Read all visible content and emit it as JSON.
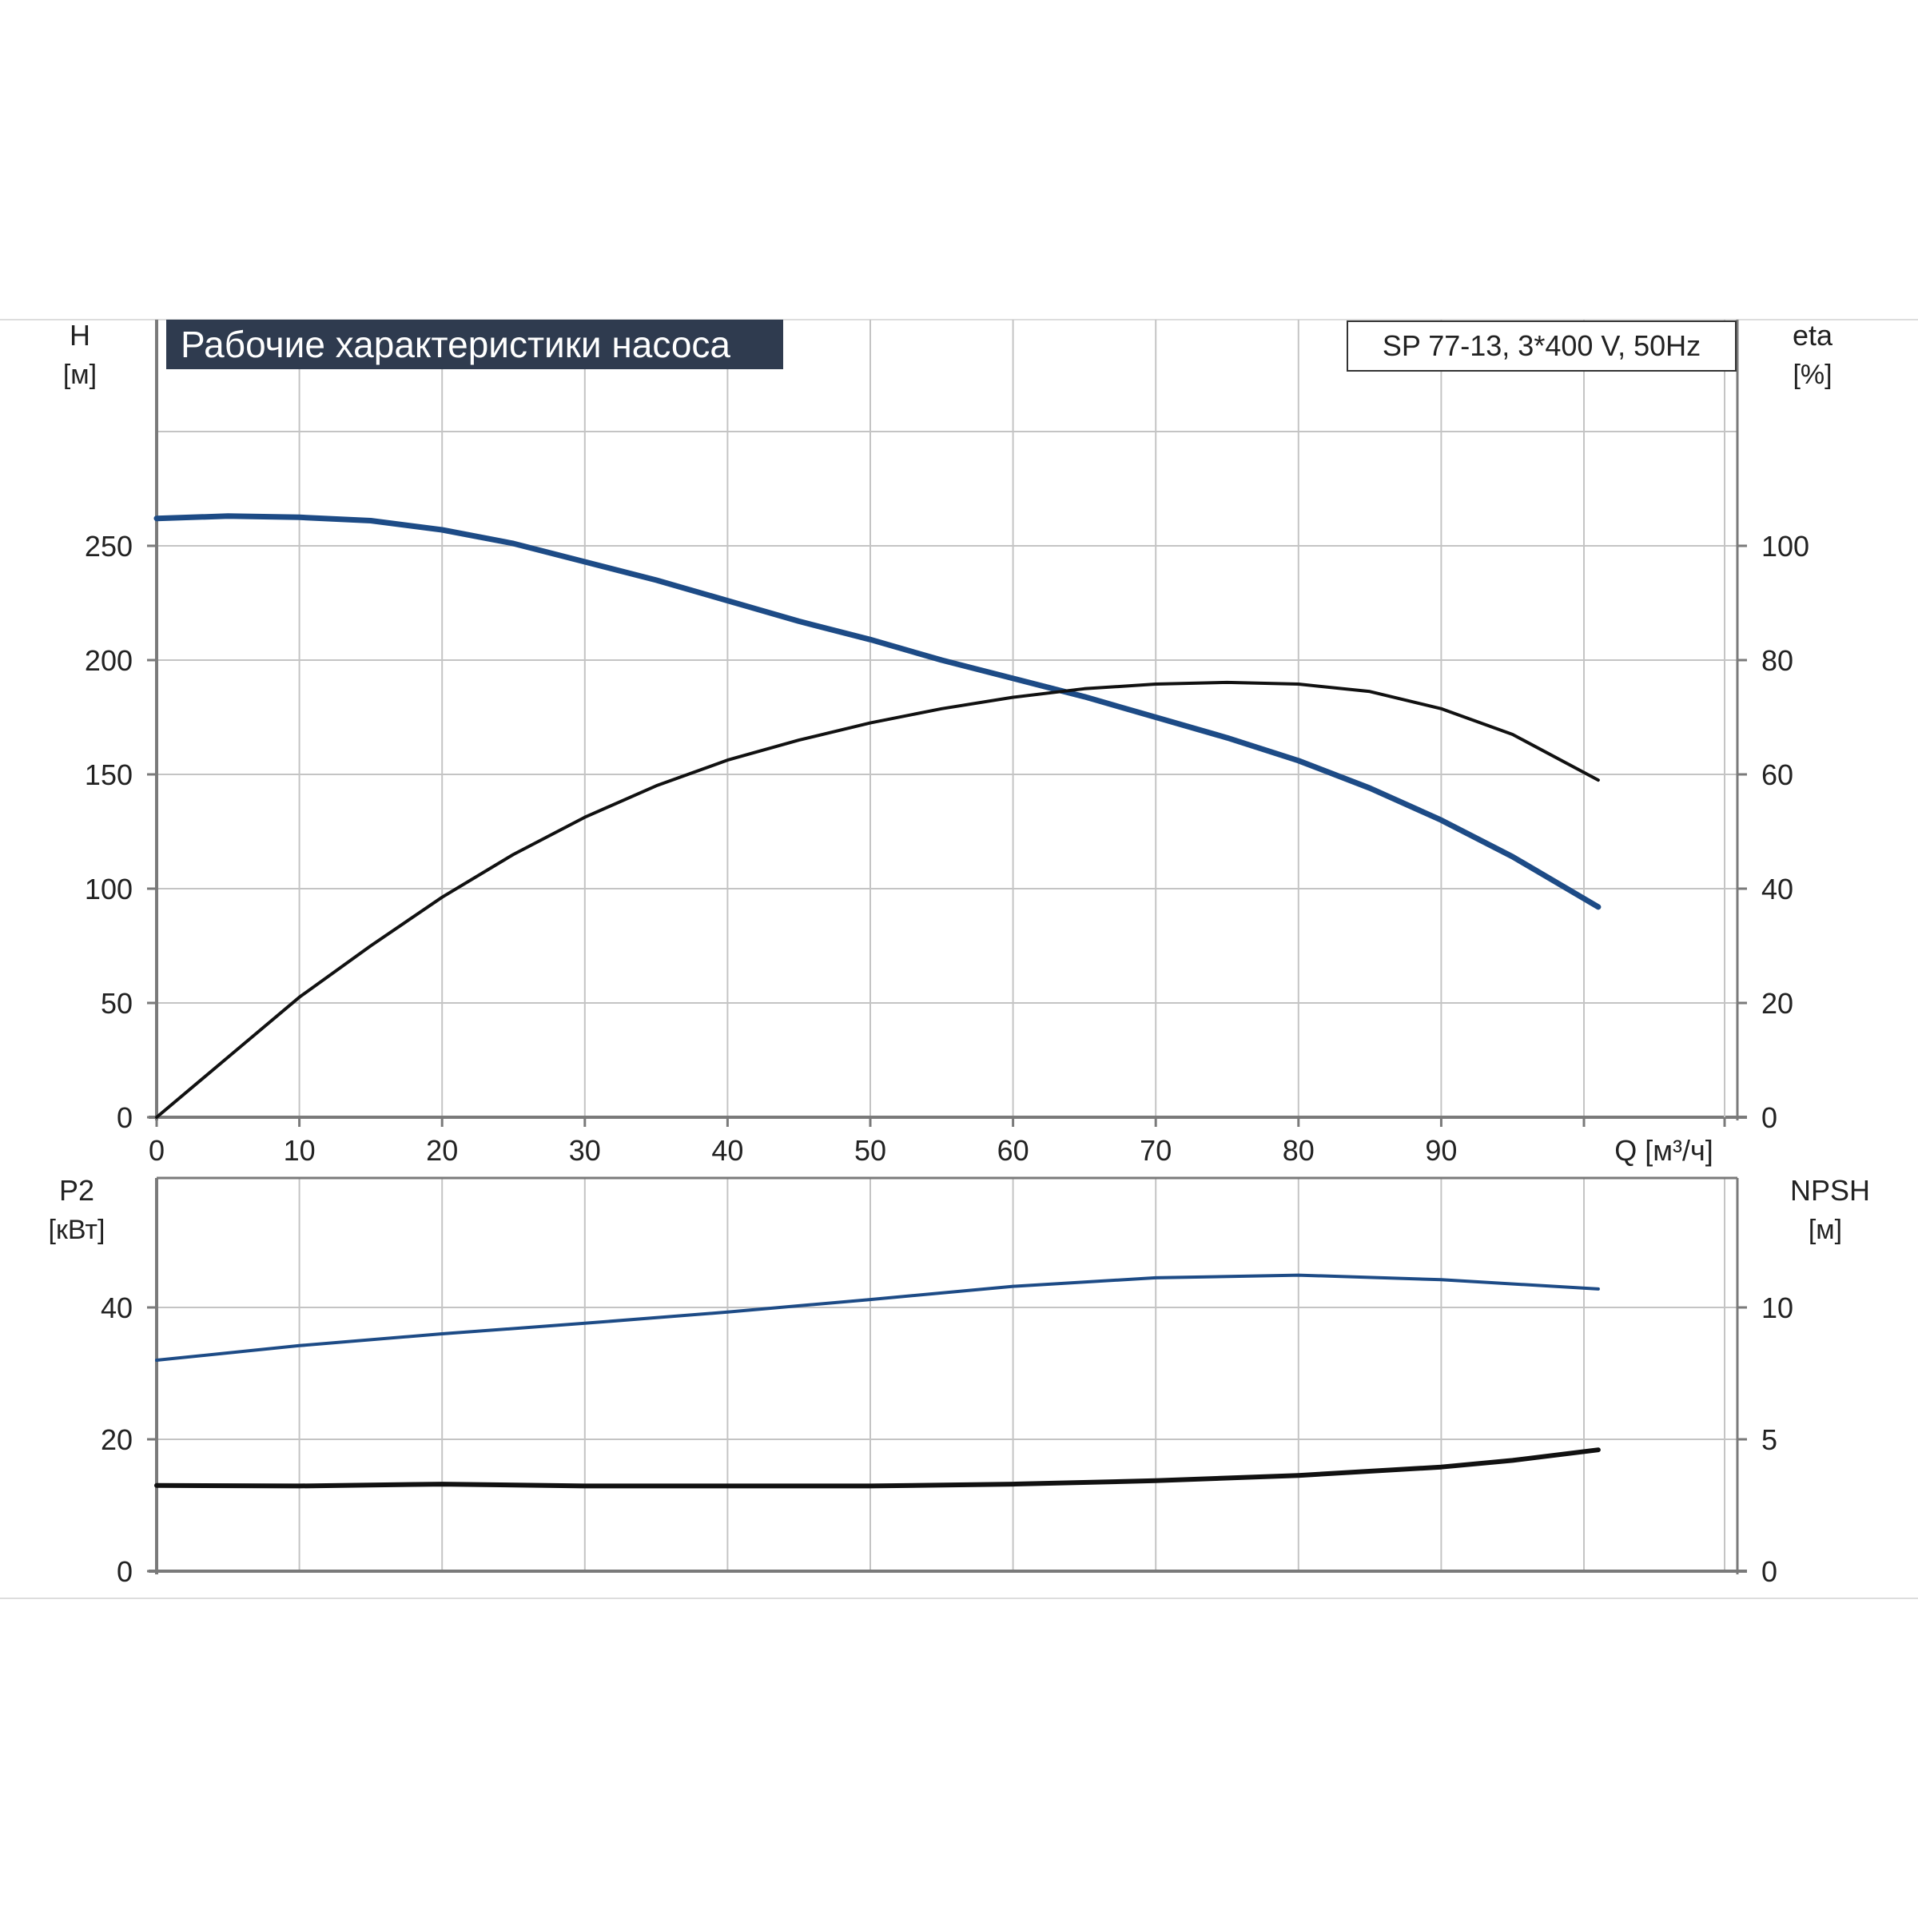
{
  "colors": {
    "head_curve": "#1d4b86",
    "efficiency_curve": "#111111",
    "power_curve": "#1d4b86",
    "npsh_curve": "#111111",
    "grid": "#c4c4c4",
    "axis": "#7a7a7a",
    "title_bg": "#2f3b4f",
    "title_text": "#ffffff"
  },
  "chart_data": [
    {
      "type": "line",
      "title": "Рабочие характеристики насоса",
      "model_label": "SP 77-13, 3*400 V, 50Hz",
      "ylabel_left": [
        "H",
        "[м]"
      ],
      "ylabel_right": [
        "eta",
        "[%]"
      ],
      "xlabel": "Q [м³/ч]",
      "xlim": [
        0,
        110
      ],
      "ylim_left": [
        0,
        300
      ],
      "ylim_right": [
        0,
        120
      ],
      "x_ticks": [
        0,
        10,
        20,
        30,
        40,
        50,
        60,
        70,
        80,
        90
      ],
      "x_tick_labels": [
        "0",
        "10",
        "20",
        "30",
        "40",
        "50",
        "60",
        "70",
        "80",
        "90"
      ],
      "y_left_ticks": [
        0,
        50,
        100,
        150,
        200,
        250
      ],
      "y_left_tick_labels": [
        "0",
        "50",
        "100",
        "150",
        "200",
        "250"
      ],
      "y_right_ticks": [
        0,
        20,
        40,
        60,
        80,
        100
      ],
      "y_right_tick_labels": [
        "0",
        "20",
        "40",
        "60",
        "80",
        "100"
      ],
      "grid": true,
      "series": [
        {
          "axis": "left",
          "color": "#1d4b86",
          "x": [
            0,
            5,
            10,
            15,
            20,
            25,
            30,
            35,
            40,
            45,
            50,
            55,
            60,
            65,
            70,
            75,
            80,
            85,
            90,
            95,
            101
          ],
          "y": [
            262,
            263,
            262.5,
            261,
            257,
            251,
            243,
            235,
            226,
            217,
            209,
            200,
            192,
            184,
            175,
            166,
            156,
            144,
            130,
            114,
            92
          ]
        },
        {
          "axis": "right",
          "color": "#111111",
          "x": [
            0,
            5,
            10,
            15,
            20,
            25,
            30,
            35,
            40,
            45,
            50,
            55,
            60,
            65,
            70,
            75,
            80,
            85,
            90,
            95,
            101
          ],
          "y": [
            0,
            10.5,
            21,
            30,
            38.5,
            46,
            52.5,
            58,
            62.5,
            66,
            69,
            71.5,
            73.5,
            75,
            75.8,
            76.1,
            75.8,
            74.5,
            71.5,
            67,
            59
          ]
        }
      ]
    },
    {
      "type": "line",
      "ylabel_left": [
        "P2",
        "[кВт]"
      ],
      "ylabel_right": [
        "NPSH",
        "[м]"
      ],
      "xlim": [
        0,
        110
      ],
      "ylim_left": [
        0,
        60
      ],
      "ylim_right": [
        0,
        15
      ],
      "y_left_ticks": [
        0,
        20,
        40
      ],
      "y_left_tick_labels": [
        "0",
        "20",
        "40"
      ],
      "y_right_ticks": [
        0,
        5,
        10
      ],
      "y_right_tick_labels": [
        "0",
        "5",
        "10"
      ],
      "grid": true,
      "series": [
        {
          "axis": "left",
          "color": "#1d4b86",
          "x": [
            0,
            10,
            20,
            30,
            40,
            50,
            60,
            70,
            80,
            90,
            101
          ],
          "y": [
            32,
            34.2,
            36,
            37.6,
            39.3,
            41.2,
            43.2,
            44.5,
            44.9,
            44.2,
            42.8
          ]
        },
        {
          "axis": "right",
          "color": "#111111",
          "x": [
            0,
            10,
            20,
            30,
            40,
            50,
            60,
            70,
            80,
            90,
            95,
            101
          ],
          "y": [
            3.25,
            3.23,
            3.3,
            3.23,
            3.23,
            3.23,
            3.3,
            3.43,
            3.63,
            3.95,
            4.2,
            4.6
          ]
        }
      ]
    }
  ]
}
